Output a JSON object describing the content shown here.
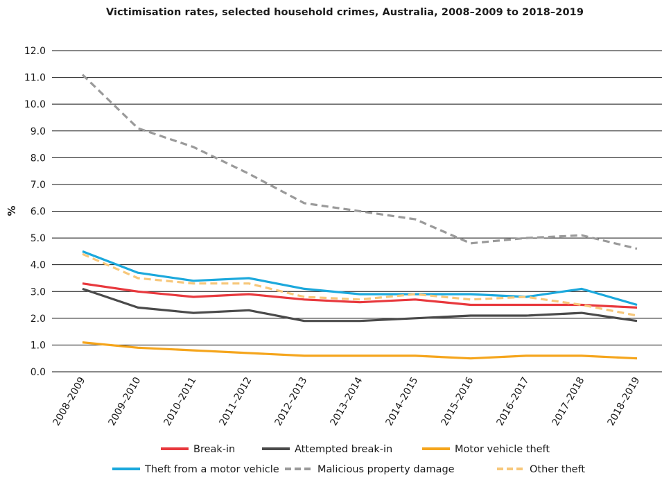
{
  "chart_data": {
    "type": "line",
    "title": "Victimisation rates, selected household crimes, Australia, 2008–2009 to 2018–2019",
    "xlabel": "",
    "ylabel": "%",
    "ylim": [
      0,
      12
    ],
    "yticks": [
      "0.0",
      "1.0",
      "2.0",
      "3.0",
      "4.0",
      "5.0",
      "6.0",
      "7.0",
      "8.0",
      "9.0",
      "10.0",
      "11.0",
      "12.0"
    ],
    "grid": "horizontal",
    "legend_position": "bottom",
    "categories": [
      "2008–2009",
      "2009–2010",
      "2010–2011",
      "2011–2012",
      "2012–2013",
      "2013–2014",
      "2014–2015",
      "2015–2016",
      "2016–2017",
      "2017–2018",
      "2018–2019"
    ],
    "series": [
      {
        "name": "Break-in",
        "color": "#e8383d",
        "dash": "solid",
        "values": [
          3.3,
          3.0,
          2.8,
          2.9,
          2.7,
          2.6,
          2.7,
          2.5,
          2.5,
          2.5,
          2.4
        ]
      },
      {
        "name": "Attempted break-in",
        "color": "#4a4a4a",
        "dash": "solid",
        "values": [
          3.1,
          2.4,
          2.2,
          2.3,
          1.9,
          1.9,
          2.0,
          2.1,
          2.1,
          2.2,
          1.9
        ]
      },
      {
        "name": "Motor vehicle theft",
        "color": "#f5a51c",
        "dash": "solid",
        "values": [
          1.1,
          0.9,
          0.8,
          0.7,
          0.6,
          0.6,
          0.6,
          0.5,
          0.6,
          0.6,
          0.5
        ]
      },
      {
        "name": "Theft from a motor vehicle",
        "color": "#1ba8dc",
        "dash": "solid",
        "values": [
          4.5,
          3.7,
          3.4,
          3.5,
          3.1,
          2.9,
          2.9,
          2.9,
          2.8,
          3.1,
          2.5
        ]
      },
      {
        "name": "Malicious property damage",
        "color": "#9a9a9a",
        "dash": "dashed",
        "values": [
          11.1,
          9.1,
          8.4,
          7.4,
          6.3,
          6.0,
          5.7,
          4.8,
          5.0,
          5.1,
          4.6
        ]
      },
      {
        "name": "Other theft",
        "color": "#f7c77a",
        "dash": "dashed",
        "values": [
          4.4,
          3.5,
          3.3,
          3.3,
          2.8,
          2.7,
          2.9,
          2.7,
          2.8,
          2.5,
          2.1
        ]
      }
    ]
  }
}
